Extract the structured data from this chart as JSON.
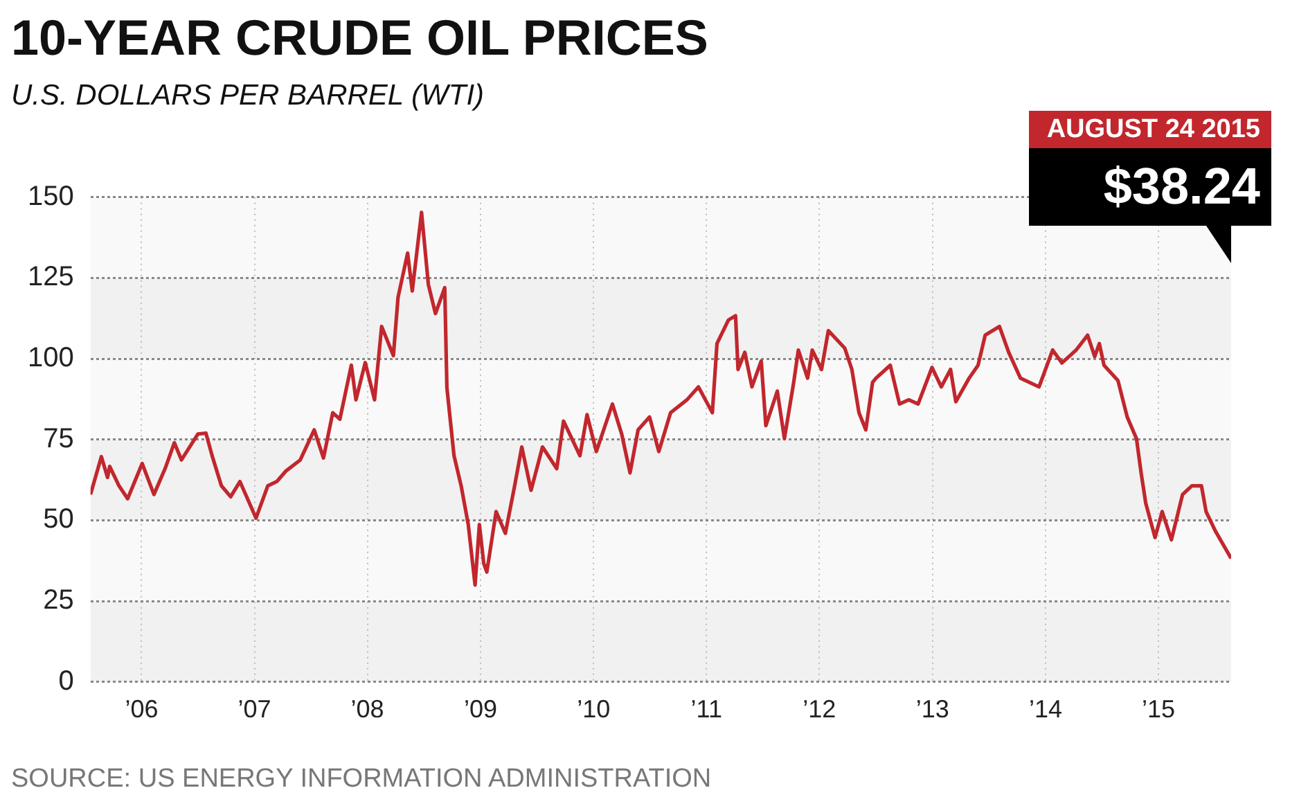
{
  "chart_data": {
    "type": "line",
    "title": "10-YEAR CRUDE OIL PRICES",
    "subtitle": "U.S. DOLLARS PER BARREL (WTI)",
    "annotations": [
      "SOURCE: US ENERGY INFORMATION ADMINISTRATION",
      "AUGUST 24 2015",
      "$38.24"
    ],
    "x": [
      "2005-07-20",
      "2005-08-24",
      "2005-09-13",
      "2005-09-20",
      "2005-10-20",
      "2005-11-17",
      "2006-01-03",
      "2006-02-10",
      "2006-03-18",
      "2006-04-17",
      "2006-05-10",
      "2006-07-02",
      "2006-07-28",
      "2006-08-17",
      "2006-09-16",
      "2006-10-16",
      "2006-11-15",
      "2007-01-06",
      "2007-02-13",
      "2007-03-14",
      "2007-04-13",
      "2007-05-29",
      "2007-07-13",
      "2007-08-12",
      "2007-09-11",
      "2007-10-04",
      "2007-11-10",
      "2007-11-25",
      "2007-12-25",
      "2008-01-24",
      "2008-02-16",
      "2008-03-25",
      "2008-04-09",
      "2008-05-10",
      "2008-05-25",
      "2008-06-24",
      "2008-07-16",
      "2008-08-08",
      "2008-09-07",
      "2008-09-14",
      "2008-10-07",
      "2008-10-30",
      "2008-11-22",
      "2008-12-14",
      "2008-12-28",
      "2009-01-11",
      "2009-01-21",
      "2009-02-20",
      "2009-03-22",
      "2009-04-21",
      "2009-05-14",
      "2009-06-13",
      "2009-07-20",
      "2009-09-04",
      "2009-09-26",
      "2009-11-18",
      "2009-12-11",
      "2010-01-10",
      "2010-03-03",
      "2010-04-02",
      "2010-04-29",
      "2010-05-25",
      "2010-07-01",
      "2010-07-31",
      "2010-09-07",
      "2010-10-30",
      "2010-12-06",
      "2011-01-20",
      "2011-02-04",
      "2011-03-13",
      "2011-04-05",
      "2011-04-13",
      "2011-05-05",
      "2011-05-28",
      "2011-06-27",
      "2011-07-12",
      "2011-08-18",
      "2011-09-10",
      "2011-10-10",
      "2011-10-25",
      "2011-11-24",
      "2011-12-09",
      "2012-01-08",
      "2012-01-30",
      "2012-03-23",
      "2012-04-15",
      "2012-05-08",
      "2012-05-30",
      "2012-06-21",
      "2012-07-02",
      "2012-08-17",
      "2012-09-16",
      "2012-10-16",
      "2012-11-15",
      "2012-12-30",
      "2013-01-29",
      "2013-02-28",
      "2013-03-17",
      "2013-04-29",
      "2013-05-28",
      "2013-06-20",
      "2013-08-05",
      "2013-09-04",
      "2013-10-12",
      "2013-12-11",
      "2014-01-24",
      "2014-02-23",
      "2014-04-10",
      "2014-05-17",
      "2014-06-09",
      "2014-06-24",
      "2014-07-09",
      "2014-08-23",
      "2014-09-22",
      "2014-10-22",
      "2014-11-06",
      "2014-11-21",
      "2014-12-21",
      "2015-01-13",
      "2015-02-12",
      "2015-03-20",
      "2015-04-19",
      "2015-05-20",
      "2015-06-04",
      "2015-07-04",
      "2015-08-24"
    ],
    "series": [
      {
        "color": "#c1272d",
        "values": [
          58,
          69.7,
          63.3,
          66.7,
          60.7,
          56.7,
          67.6,
          58,
          66,
          74,
          68.7,
          76.7,
          77,
          70,
          60.7,
          57.3,
          62,
          50.7,
          60.7,
          62,
          65.3,
          68.7,
          78,
          69.3,
          83.3,
          81.3,
          98,
          87.3,
          98.8,
          87.3,
          110,
          101,
          119,
          132.7,
          121,
          145.3,
          123,
          114,
          122,
          91,
          70,
          60.7,
          48.7,
          30,
          48.7,
          36.7,
          34,
          52.7,
          46,
          60.7,
          72.7,
          59.3,
          72.7,
          66,
          80.7,
          70,
          82.7,
          71.3,
          86,
          76.7,
          64.7,
          78,
          82,
          71.3,
          83.3,
          87.3,
          91.3,
          83.3,
          104.7,
          112,
          113.3,
          96.7,
          102,
          91.3,
          99.3,
          79.3,
          90,
          75.3,
          92.7,
          102.7,
          94,
          102.7,
          96.7,
          108.7,
          103.3,
          96.7,
          83.3,
          78,
          92.7,
          94,
          98,
          86,
          87.3,
          86,
          97.3,
          91.3,
          96.7,
          86.7,
          94,
          98,
          107.3,
          110,
          102,
          94,
          91.3,
          102.7,
          98.7,
          102.7,
          107.3,
          100.7,
          104.7,
          98,
          93.3,
          82,
          75.3,
          64.7,
          55.3,
          44.7,
          52.7,
          44,
          58,
          60.7,
          60.7,
          52.7,
          46.7,
          38.24
        ]
      }
    ],
    "xlim": [
      "2005-07-20",
      "2015-08-24"
    ],
    "xticks": [
      {
        "value": "2006-01-01",
        "label": "’06"
      },
      {
        "value": "2007-01-01",
        "label": "’07"
      },
      {
        "value": "2008-01-01",
        "label": "’08"
      },
      {
        "value": "2009-01-01",
        "label": "’09"
      },
      {
        "value": "2010-01-01",
        "label": "’10"
      },
      {
        "value": "2011-01-01",
        "label": "’11"
      },
      {
        "value": "2012-01-01",
        "label": "’12"
      },
      {
        "value": "2013-01-01",
        "label": "’13"
      },
      {
        "value": "2014-01-01",
        "label": "’14"
      },
      {
        "value": "2015-01-01",
        "label": "’15"
      }
    ],
    "ylim": [
      0,
      150
    ],
    "yticks": [
      0,
      25,
      50,
      75,
      100,
      125,
      150
    ],
    "grid": true,
    "legend": false,
    "marker": "none",
    "line_style": "solid"
  }
}
